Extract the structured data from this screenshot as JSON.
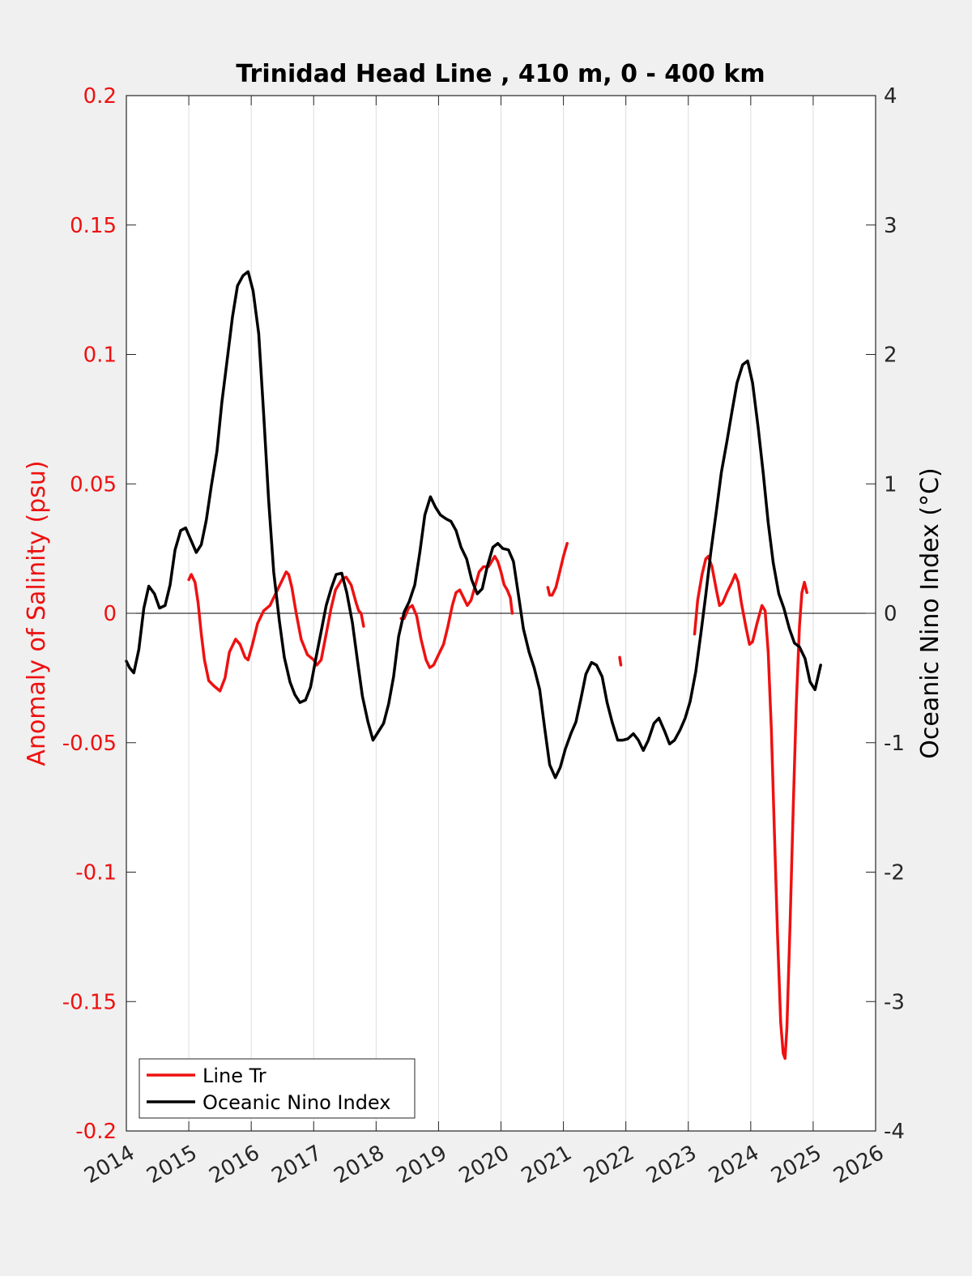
{
  "colors": {
    "background": "#f0f0f0",
    "axes_background": "#ffffff",
    "salinity": "#ee1111",
    "oni": "#000000",
    "grid": "#dddddd"
  },
  "chart_data": {
    "type": "line",
    "title": "Trinidad Head Line , 410 m, 0 - 400 km",
    "xlabel": "",
    "xlim": [
      2014,
      2026
    ],
    "xticks": [
      "2014",
      "2015",
      "2016",
      "2017",
      "2018",
      "2019",
      "2020",
      "2021",
      "2022",
      "2023",
      "2024",
      "2025",
      "2026"
    ],
    "ylabel_left": "Anomaly of Salinity (psu)",
    "ylim_left": [
      -0.2,
      0.2
    ],
    "yticks_left": [
      "0.2",
      "0.15",
      "0.1",
      "0.05",
      "0",
      "-0.05",
      "-0.1",
      "-0.15",
      "-0.2"
    ],
    "ylabel_right": "Oceanic Nino Index (°C)",
    "ylim_right": [
      -4,
      4
    ],
    "yticks_right": [
      "4",
      "3",
      "2",
      "1",
      "0",
      "-1",
      "-2",
      "-3",
      "-4"
    ],
    "grid": "vertical",
    "legend_position": "bottom-left",
    "series": [
      {
        "name": "Line Tr",
        "axis": "left",
        "color": "#ee1111",
        "segments": [
          [
            [
              2015.0,
              0.013
            ],
            [
              2015.04,
              0.015
            ],
            [
              2015.1,
              0.012
            ],
            [
              2015.15,
              0.004
            ],
            [
              2015.2,
              -0.008
            ],
            [
              2015.25,
              -0.018
            ],
            [
              2015.32,
              -0.026
            ],
            [
              2015.4,
              -0.028
            ],
            [
              2015.5,
              -0.03
            ],
            [
              2015.58,
              -0.025
            ],
            [
              2015.65,
              -0.015
            ],
            [
              2015.75,
              -0.01
            ],
            [
              2015.82,
              -0.012
            ],
            [
              2015.9,
              -0.017
            ],
            [
              2015.95,
              -0.018
            ],
            [
              2016.02,
              -0.012
            ],
            [
              2016.1,
              -0.004
            ],
            [
              2016.2,
              0.001
            ],
            [
              2016.3,
              0.003
            ],
            [
              2016.4,
              0.008
            ],
            [
              2016.5,
              0.013
            ],
            [
              2016.56,
              0.016
            ],
            [
              2016.6,
              0.015
            ],
            [
              2016.65,
              0.01
            ],
            [
              2016.72,
              0.0
            ],
            [
              2016.8,
              -0.01
            ],
            [
              2016.9,
              -0.016
            ],
            [
              2017.0,
              -0.018
            ],
            [
              2017.05,
              -0.02
            ],
            [
              2017.12,
              -0.018
            ],
            [
              2017.2,
              -0.008
            ],
            [
              2017.28,
              0.002
            ],
            [
              2017.35,
              0.009
            ],
            [
              2017.45,
              0.013
            ],
            [
              2017.52,
              0.014
            ],
            [
              2017.6,
              0.011
            ],
            [
              2017.68,
              0.004
            ],
            [
              2017.72,
              0.001
            ],
            [
              2017.76,
              0.0
            ],
            [
              2017.8,
              -0.005
            ]
          ],
          [
            [
              2018.4,
              -0.002
            ],
            [
              2018.45,
              -0.002
            ],
            [
              2018.52,
              0.002
            ],
            [
              2018.58,
              0.003
            ],
            [
              2018.65,
              -0.001
            ],
            [
              2018.72,
              -0.01
            ],
            [
              2018.8,
              -0.018
            ],
            [
              2018.86,
              -0.021
            ],
            [
              2018.92,
              -0.02
            ],
            [
              2019.0,
              -0.016
            ],
            [
              2019.08,
              -0.012
            ],
            [
              2019.15,
              -0.005
            ],
            [
              2019.22,
              0.003
            ],
            [
              2019.28,
              0.008
            ],
            [
              2019.34,
              0.009
            ],
            [
              2019.4,
              0.006
            ],
            [
              2019.46,
              0.003
            ],
            [
              2019.52,
              0.005
            ],
            [
              2019.58,
              0.01
            ],
            [
              2019.65,
              0.016
            ],
            [
              2019.72,
              0.018
            ],
            [
              2019.8,
              0.018
            ],
            [
              2019.85,
              0.02
            ],
            [
              2019.9,
              0.022
            ],
            [
              2019.95,
              0.02
            ],
            [
              2020.0,
              0.016
            ],
            [
              2020.05,
              0.011
            ],
            [
              2020.1,
              0.009
            ],
            [
              2020.15,
              0.006
            ],
            [
              2020.18,
              0.0
            ]
          ],
          [
            [
              2020.75,
              0.01
            ],
            [
              2020.78,
              0.007
            ],
            [
              2020.82,
              0.007
            ],
            [
              2020.88,
              0.01
            ],
            [
              2020.94,
              0.016
            ],
            [
              2021.0,
              0.022
            ],
            [
              2021.06,
              0.027
            ]
          ],
          [
            [
              2021.9,
              -0.017
            ],
            [
              2021.92,
              -0.02
            ]
          ],
          [
            [
              2023.1,
              -0.008
            ],
            [
              2023.15,
              0.005
            ],
            [
              2023.22,
              0.015
            ],
            [
              2023.28,
              0.021
            ],
            [
              2023.32,
              0.022
            ],
            [
              2023.38,
              0.018
            ],
            [
              2023.45,
              0.009
            ],
            [
              2023.5,
              0.003
            ],
            [
              2023.55,
              0.004
            ],
            [
              2023.62,
              0.008
            ],
            [
              2023.7,
              0.012
            ],
            [
              2023.75,
              0.015
            ],
            [
              2023.8,
              0.012
            ],
            [
              2023.85,
              0.004
            ],
            [
              2023.92,
              -0.005
            ],
            [
              2023.98,
              -0.012
            ],
            [
              2024.03,
              -0.011
            ],
            [
              2024.1,
              -0.004
            ],
            [
              2024.18,
              0.003
            ],
            [
              2024.23,
              0.001
            ],
            [
              2024.28,
              -0.015
            ],
            [
              2024.33,
              -0.045
            ],
            [
              2024.38,
              -0.085
            ],
            [
              2024.43,
              -0.125
            ],
            [
              2024.48,
              -0.158
            ],
            [
              2024.52,
              -0.17
            ],
            [
              2024.55,
              -0.172
            ],
            [
              2024.58,
              -0.16
            ],
            [
              2024.63,
              -0.12
            ],
            [
              2024.68,
              -0.075
            ],
            [
              2024.73,
              -0.035
            ],
            [
              2024.78,
              -0.005
            ],
            [
              2024.82,
              0.008
            ],
            [
              2024.86,
              0.012
            ],
            [
              2024.9,
              0.008
            ]
          ]
        ]
      },
      {
        "name": "Oceanic Nino Index",
        "axis": "right",
        "color": "#000000",
        "segments": [
          [
            [
              2014.0,
              -0.37
            ],
            [
              2014.05,
              -0.42
            ],
            [
              2014.12,
              -0.46
            ],
            [
              2014.2,
              -0.28
            ],
            [
              2014.28,
              0.04
            ],
            [
              2014.36,
              0.21
            ],
            [
              2014.45,
              0.15
            ],
            [
              2014.53,
              0.04
            ],
            [
              2014.62,
              0.06
            ],
            [
              2014.7,
              0.22
            ],
            [
              2014.78,
              0.49
            ],
            [
              2014.87,
              0.64
            ],
            [
              2014.95,
              0.66
            ],
            [
              2015.03,
              0.57
            ],
            [
              2015.12,
              0.47
            ],
            [
              2015.2,
              0.53
            ],
            [
              2015.28,
              0.72
            ],
            [
              2015.36,
              0.98
            ],
            [
              2015.45,
              1.25
            ],
            [
              2015.53,
              1.63
            ],
            [
              2015.62,
              1.98
            ],
            [
              2015.7,
              2.29
            ],
            [
              2015.78,
              2.53
            ],
            [
              2015.87,
              2.61
            ],
            [
              2015.95,
              2.64
            ],
            [
              2016.03,
              2.49
            ],
            [
              2016.12,
              2.16
            ],
            [
              2016.2,
              1.53
            ],
            [
              2016.28,
              0.87
            ],
            [
              2016.36,
              0.32
            ],
            [
              2016.45,
              -0.06
            ],
            [
              2016.53,
              -0.34
            ],
            [
              2016.62,
              -0.53
            ],
            [
              2016.7,
              -0.63
            ],
            [
              2016.78,
              -0.69
            ],
            [
              2016.87,
              -0.67
            ],
            [
              2016.95,
              -0.57
            ],
            [
              2017.03,
              -0.36
            ],
            [
              2017.12,
              -0.14
            ],
            [
              2017.2,
              0.06
            ],
            [
              2017.28,
              0.19
            ],
            [
              2017.36,
              0.3
            ],
            [
              2017.45,
              0.31
            ],
            [
              2017.53,
              0.16
            ],
            [
              2017.62,
              -0.07
            ],
            [
              2017.7,
              -0.36
            ],
            [
              2017.78,
              -0.64
            ],
            [
              2017.87,
              -0.84
            ],
            [
              2017.95,
              -0.98
            ],
            [
              2018.03,
              -0.92
            ],
            [
              2018.12,
              -0.85
            ],
            [
              2018.2,
              -0.7
            ],
            [
              2018.28,
              -0.49
            ],
            [
              2018.36,
              -0.18
            ],
            [
              2018.45,
              0.01
            ],
            [
              2018.53,
              0.09
            ],
            [
              2018.62,
              0.22
            ],
            [
              2018.7,
              0.47
            ],
            [
              2018.78,
              0.76
            ],
            [
              2018.87,
              0.9
            ],
            [
              2018.95,
              0.82
            ],
            [
              2019.03,
              0.76
            ],
            [
              2019.12,
              0.73
            ],
            [
              2019.2,
              0.71
            ],
            [
              2019.28,
              0.64
            ],
            [
              2019.36,
              0.51
            ],
            [
              2019.45,
              0.42
            ],
            [
              2019.53,
              0.26
            ],
            [
              2019.62,
              0.15
            ],
            [
              2019.7,
              0.19
            ],
            [
              2019.78,
              0.36
            ],
            [
              2019.87,
              0.51
            ],
            [
              2019.95,
              0.54
            ],
            [
              2020.03,
              0.5
            ],
            [
              2020.12,
              0.49
            ],
            [
              2020.2,
              0.4
            ],
            [
              2020.28,
              0.14
            ],
            [
              2020.36,
              -0.12
            ],
            [
              2020.45,
              -0.3
            ],
            [
              2020.53,
              -0.42
            ],
            [
              2020.62,
              -0.59
            ],
            [
              2020.7,
              -0.89
            ],
            [
              2020.78,
              -1.17
            ],
            [
              2020.87,
              -1.27
            ],
            [
              2020.95,
              -1.19
            ],
            [
              2021.03,
              -1.05
            ],
            [
              2021.12,
              -0.93
            ],
            [
              2021.2,
              -0.84
            ],
            [
              2021.28,
              -0.66
            ],
            [
              2021.36,
              -0.47
            ],
            [
              2021.45,
              -0.38
            ],
            [
              2021.53,
              -0.4
            ],
            [
              2021.62,
              -0.49
            ],
            [
              2021.7,
              -0.69
            ],
            [
              2021.78,
              -0.84
            ],
            [
              2021.87,
              -0.98
            ],
            [
              2021.95,
              -0.98
            ],
            [
              2022.03,
              -0.97
            ],
            [
              2022.12,
              -0.93
            ],
            [
              2022.2,
              -0.98
            ],
            [
              2022.28,
              -1.06
            ],
            [
              2022.36,
              -0.98
            ],
            [
              2022.45,
              -0.85
            ],
            [
              2022.53,
              -0.81
            ],
            [
              2022.62,
              -0.91
            ],
            [
              2022.7,
              -1.01
            ],
            [
              2022.78,
              -0.98
            ],
            [
              2022.87,
              -0.9
            ],
            [
              2022.95,
              -0.81
            ],
            [
              2023.03,
              -0.68
            ],
            [
              2023.12,
              -0.45
            ],
            [
              2023.2,
              -0.16
            ],
            [
              2023.28,
              0.14
            ],
            [
              2023.36,
              0.47
            ],
            [
              2023.45,
              0.79
            ],
            [
              2023.53,
              1.09
            ],
            [
              2023.62,
              1.33
            ],
            [
              2023.7,
              1.56
            ],
            [
              2023.78,
              1.78
            ],
            [
              2023.87,
              1.92
            ],
            [
              2023.95,
              1.95
            ],
            [
              2024.03,
              1.78
            ],
            [
              2024.12,
              1.43
            ],
            [
              2024.2,
              1.08
            ],
            [
              2024.28,
              0.7
            ],
            [
              2024.36,
              0.39
            ],
            [
              2024.45,
              0.15
            ],
            [
              2024.53,
              0.04
            ],
            [
              2024.62,
              -0.12
            ],
            [
              2024.7,
              -0.23
            ],
            [
              2024.78,
              -0.26
            ],
            [
              2024.87,
              -0.35
            ],
            [
              2024.95,
              -0.53
            ],
            [
              2025.03,
              -0.59
            ],
            [
              2025.12,
              -0.4
            ]
          ]
        ]
      }
    ]
  },
  "legend": {
    "entries": [
      "Line Tr",
      "Oceanic Nino Index"
    ]
  }
}
